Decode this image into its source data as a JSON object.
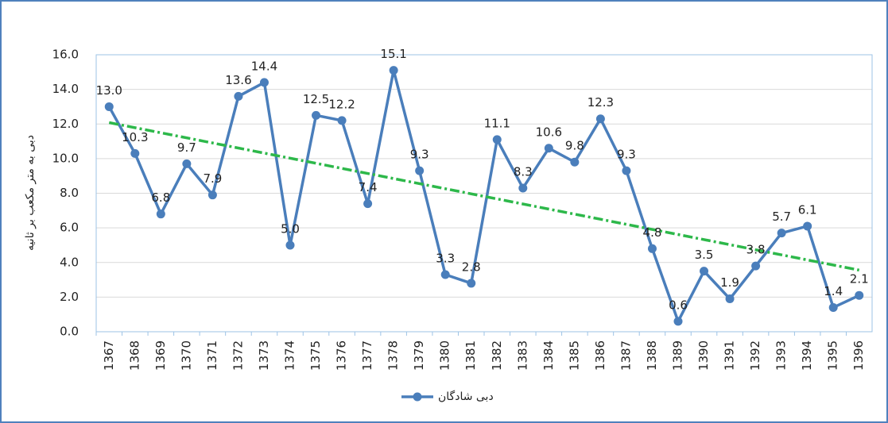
{
  "chart_data": {
    "type": "line",
    "y_label": "دبی به متر مکعب بر ثانیه",
    "categories": [
      "1367",
      "1368",
      "1369",
      "1370",
      "1371",
      "1372",
      "1373",
      "1374",
      "1375",
      "1376",
      "1377",
      "1378",
      "1379",
      "1380",
      "1381",
      "1382",
      "1383",
      "1384",
      "1385",
      "1386",
      "1387",
      "1388",
      "1389",
      "1390",
      "1391",
      "1392",
      "1393",
      "1394",
      "1395",
      "1396"
    ],
    "series": [
      {
        "name": "دبی شادگان",
        "color": "#4a7ebb",
        "values": [
          13.0,
          10.3,
          6.8,
          9.7,
          7.9,
          13.6,
          14.4,
          5.0,
          12.5,
          12.2,
          7.4,
          15.1,
          9.3,
          3.3,
          2.8,
          11.1,
          8.3,
          10.6,
          9.8,
          12.3,
          9.3,
          4.8,
          0.6,
          3.5,
          1.9,
          3.8,
          5.7,
          6.1,
          1.4,
          2.1
        ],
        "value_labels": [
          "13.0",
          "10.3",
          "6.8",
          "9.7",
          "7.9",
          "13.6",
          "14.4",
          "5.0",
          "12.5",
          "12.2",
          "7.4",
          "15.1",
          "9.3",
          "3.3",
          "2.8",
          "11.1",
          "8.3",
          "10.6",
          "9.8",
          "12.3",
          "9.3",
          "4.8",
          "0.6",
          "3.5",
          "1.9",
          "3.8",
          "5.7",
          "6.1",
          "1.4",
          "2.1"
        ]
      }
    ],
    "trendline": true,
    "trendline_color": "#2db84a",
    "ylim": [
      0,
      16
    ],
    "yticks": [
      {
        "value": 0,
        "label": "0.0"
      },
      {
        "value": 2,
        "label": "2.0"
      },
      {
        "value": 4,
        "label": "4.0"
      },
      {
        "value": 6,
        "label": "6.0"
      },
      {
        "value": 8,
        "label": "8.0"
      },
      {
        "value": 10,
        "label": "10.0"
      },
      {
        "value": 12,
        "label": "12.0"
      },
      {
        "value": 14,
        "label": "14.0"
      },
      {
        "value": 16,
        "label": "16.0"
      }
    ],
    "grid": true,
    "legend": "bottom"
  }
}
